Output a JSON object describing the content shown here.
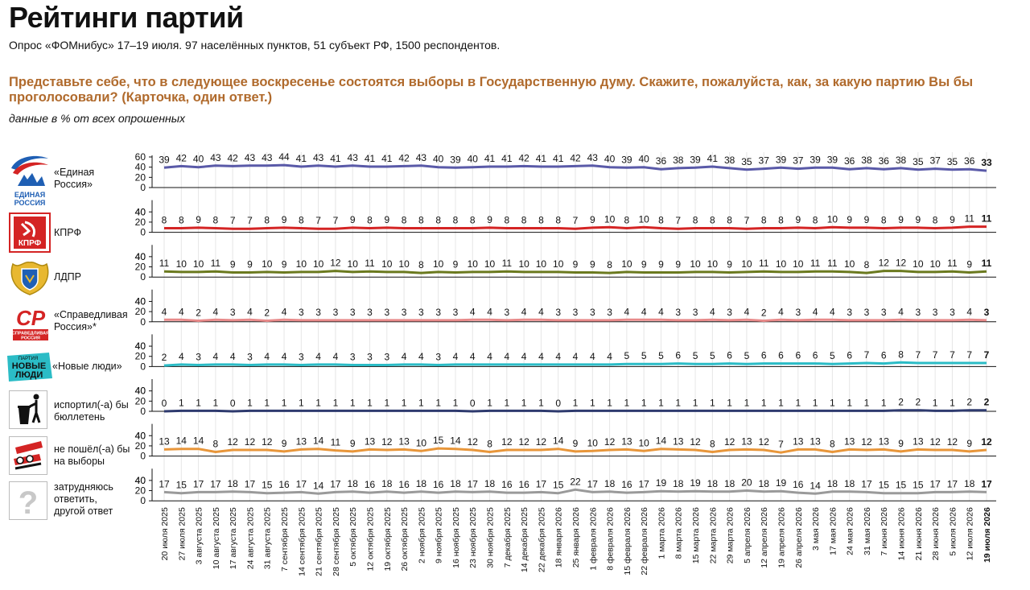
{
  "header": {
    "title": "Рейтинги партий",
    "subtitle": "Опрос «ФОМнибус» 17–19 июля. 97 населённых пунктов, 51 субъект РФ, 1500 респондентов.",
    "question": "Представьте себе, что в следующее воскресенье состоятся выборы в Государственную думу. Скажите, пожалуйста, как, за какую партию Вы бы проголосовали? (Карточка, один ответ.)",
    "note": "данные в % от всех опрошенных"
  },
  "parties": [
    {
      "label_lines": [
        "«Единая",
        "Россия»"
      ],
      "logo": "united-russia-logo",
      "logo_text": [
        "ЕДИНАЯ",
        "РОССИЯ"
      ]
    },
    {
      "label_lines": [
        "КПРФ"
      ],
      "logo": "kprf-logo",
      "logo_text": [
        "КПРФ"
      ]
    },
    {
      "label_lines": [
        "ЛДПР"
      ],
      "logo": "ldpr-logo",
      "logo_text": []
    },
    {
      "label_lines": [
        "«Справедливая",
        "Россия»*"
      ],
      "logo": "just-russia-logo",
      "logo_text": [
        "СР",
        "СПРАВЕДЛИВАЯ",
        "РОССИЯ"
      ]
    },
    {
      "label_lines": [
        "«Новые люди»"
      ],
      "logo": "new-people-logo",
      "logo_text": [
        "ПАРТИЯ",
        "НОВЫЕ",
        "ЛЮДИ"
      ]
    },
    {
      "label_lines": [
        "испортил(-а) бы",
        "бюллетень"
      ],
      "logo": "trash-icon",
      "logo_text": []
    },
    {
      "label_lines": [
        "не пошёл(-а) бы",
        "на выборы"
      ],
      "logo": "crossed-ballot-icon",
      "logo_text": []
    },
    {
      "label_lines": [
        "затрудняюсь",
        "ответить,",
        "другой ответ"
      ],
      "logo": "question-mark-icon",
      "logo_text": [
        "?"
      ]
    }
  ],
  "chart_data": {
    "type": "line",
    "categories": [
      "20 июля 2025",
      "27 июля 2025",
      "3 августа 2025",
      "10 августа 2025",
      "17 августа 2025",
      "24 августа 2025",
      "31 августа 2025",
      "7 сентября 2025",
      "14 сентября 2025",
      "21 сентября 2025",
      "28 сентября 2025",
      "5 октября 2025",
      "12 октября 2025",
      "19 октября 2025",
      "26 октября 2025",
      "2 ноября 2025",
      "9 ноября 2025",
      "16 ноября 2025",
      "23 ноября 2025",
      "30 ноября 2025",
      "7 декабря 2025",
      "14 декабря 2025",
      "22 декабря 2025",
      "18 января 2026",
      "25 января 2026",
      "1 февраля 2026",
      "8 февраля 2026",
      "15 февраля 2026",
      "22 февраля 2026",
      "1 марта 2026",
      "8 марта 2026",
      "15 марта 2026",
      "22 марта 2026",
      "29 марта 2026",
      "5 апреля 2026",
      "12 апреля 2026",
      "19 апреля 2026",
      "26 апреля 2026",
      "3 мая 2026",
      "17 мая 2026",
      "24 мая 2026",
      "31 мая 2026",
      "7 июня 2026",
      "14 июня 2026",
      "21 июня 2026",
      "28 июня 2026",
      "5 июля 2026",
      "12 июля 2026",
      "19 июля 2026"
    ],
    "ylim": [
      0,
      60
    ],
    "yticks": [
      0,
      20,
      40,
      60
    ],
    "grid": "vertical",
    "series": [
      {
        "color": "#5a5aa8",
        "values": [
          39,
          42,
          40,
          43,
          42,
          43,
          43,
          44,
          41,
          43,
          41,
          43,
          41,
          41,
          42,
          43,
          40,
          39,
          40,
          41,
          41,
          42,
          41,
          41,
          42,
          43,
          40,
          39,
          40,
          36,
          38,
          39,
          41,
          38,
          35,
          37,
          39,
          37,
          39,
          39,
          36,
          38,
          36,
          38,
          35,
          37,
          35,
          36,
          33
        ]
      },
      {
        "color": "#d42424",
        "values": [
          8,
          8,
          9,
          8,
          7,
          7,
          8,
          9,
          8,
          7,
          7,
          9,
          8,
          9,
          8,
          8,
          8,
          8,
          8,
          9,
          8,
          8,
          8,
          8,
          7,
          9,
          10,
          8,
          10,
          8,
          7,
          8,
          8,
          8,
          7,
          8,
          8,
          9,
          8,
          10,
          9,
          9,
          8,
          9,
          9,
          8,
          9,
          11,
          11
        ]
      },
      {
        "color": "#6b7a1f",
        "values": [
          11,
          10,
          10,
          11,
          9,
          9,
          10,
          9,
          10,
          10,
          12,
          10,
          11,
          10,
          10,
          8,
          10,
          9,
          10,
          10,
          11,
          10,
          10,
          10,
          9,
          9,
          8,
          10,
          9,
          9,
          9,
          10,
          10,
          9,
          10,
          11,
          10,
          10,
          11,
          11,
          10,
          8,
          12,
          12,
          10,
          10,
          11,
          9,
          11
        ]
      },
      {
        "color": "#e88a8a",
        "values": [
          4,
          4,
          2,
          4,
          3,
          4,
          2,
          4,
          3,
          3,
          3,
          3,
          3,
          3,
          3,
          3,
          3,
          3,
          4,
          4,
          3,
          4,
          4,
          3,
          3,
          3,
          3,
          4,
          4,
          4,
          3,
          3,
          4,
          3,
          4,
          2,
          4,
          3,
          4,
          4,
          3,
          3,
          3,
          4,
          3,
          3,
          3,
          4,
          3
        ]
      },
      {
        "color": "#2bbcc6",
        "values": [
          2,
          4,
          3,
          4,
          4,
          3,
          4,
          4,
          3,
          4,
          4,
          3,
          3,
          3,
          4,
          4,
          3,
          4,
          4,
          4,
          4,
          4,
          4,
          4,
          4,
          4,
          4,
          5,
          5,
          5,
          6,
          5,
          5,
          6,
          5,
          6,
          6,
          6,
          6,
          5,
          6,
          7,
          6,
          8,
          7,
          7,
          7,
          7,
          7
        ]
      },
      {
        "color": "#2e3a6e",
        "values": [
          0,
          1,
          1,
          1,
          0,
          1,
          1,
          1,
          1,
          1,
          1,
          1,
          1,
          1,
          1,
          1,
          1,
          1,
          0,
          1,
          1,
          1,
          1,
          0,
          1,
          1,
          1,
          1,
          1,
          1,
          1,
          1,
          1,
          1,
          1,
          1,
          1,
          1,
          1,
          1,
          1,
          1,
          1,
          2,
          2,
          1,
          1,
          2,
          2
        ]
      },
      {
        "color": "#e8963a",
        "values": [
          13,
          14,
          14,
          8,
          12,
          12,
          12,
          9,
          13,
          14,
          11,
          9,
          13,
          12,
          13,
          10,
          15,
          14,
          12,
          8,
          12,
          12,
          12,
          14,
          9,
          10,
          12,
          13,
          10,
          14,
          13,
          12,
          8,
          12,
          13,
          12,
          7,
          13,
          13,
          8,
          13,
          12,
          13,
          9,
          13,
          12,
          12,
          9,
          12
        ]
      },
      {
        "color": "#9a9a9a",
        "values": [
          17,
          15,
          17,
          17,
          18,
          17,
          15,
          16,
          17,
          14,
          17,
          18,
          16,
          18,
          16,
          18,
          16,
          18,
          17,
          18,
          16,
          16,
          17,
          15,
          22,
          17,
          18,
          16,
          17,
          19,
          18,
          19,
          18,
          18,
          20,
          18,
          19,
          16,
          14,
          18,
          18,
          17,
          15,
          15,
          15,
          17,
          17,
          18,
          17
        ]
      }
    ]
  }
}
